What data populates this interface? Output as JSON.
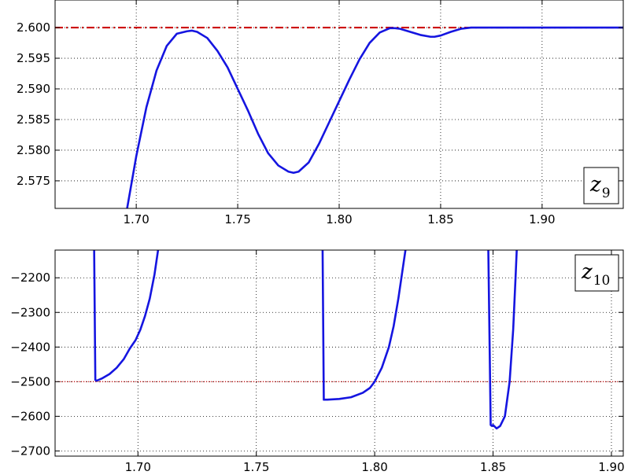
{
  "chart_data": [
    {
      "type": "line",
      "legend_label": "z",
      "legend_subscript": "9",
      "legend_placement": "bottom-right",
      "xlim": [
        1.66,
        1.94
      ],
      "ylim": [
        2.5705,
        2.6045
      ],
      "xticks": [
        1.7,
        1.75,
        1.8,
        1.85,
        1.9
      ],
      "xtick_labels": [
        "1.70",
        "1.75",
        "1.80",
        "1.85",
        "1.90"
      ],
      "yticks": [
        2.575,
        2.58,
        2.585,
        2.59,
        2.595,
        2.6
      ],
      "ytick_labels": [
        "2.575",
        "2.580",
        "2.585",
        "2.590",
        "2.595",
        "2.600"
      ],
      "grid": true,
      "reference_line": {
        "y": 2.6,
        "color": "#cc0000",
        "style": "dash-dot"
      },
      "series": [
        {
          "color": "#1515e0",
          "x": [
            1.6955,
            1.7,
            1.705,
            1.71,
            1.715,
            1.72,
            1.725,
            1.7275,
            1.73,
            1.735,
            1.74,
            1.745,
            1.75,
            1.755,
            1.76,
            1.765,
            1.77,
            1.775,
            1.7775,
            1.78,
            1.785,
            1.79,
            1.795,
            1.8,
            1.805,
            1.81,
            1.815,
            1.82,
            1.825,
            1.8275,
            1.83,
            1.835,
            1.84,
            1.845,
            1.847,
            1.85,
            1.855,
            1.86,
            1.865,
            1.87,
            1.88,
            1.9,
            1.92,
            1.94
          ],
          "y": [
            2.5705,
            2.579,
            2.587,
            2.593,
            2.597,
            2.599,
            2.5994,
            2.5995,
            2.5993,
            2.5983,
            2.5962,
            2.5935,
            2.59,
            2.5865,
            2.5827,
            2.5795,
            2.5775,
            2.5765,
            2.5763,
            2.5765,
            2.578,
            2.581,
            2.5845,
            2.588,
            2.5915,
            2.5948,
            2.5975,
            2.5992,
            2.5999,
            2.5999,
            2.5998,
            2.5993,
            2.5988,
            2.5985,
            2.5985,
            2.5987,
            2.5993,
            2.5998,
            2.6,
            2.6,
            2.6,
            2.6,
            2.6,
            2.6
          ]
        }
      ]
    },
    {
      "type": "line",
      "legend_label": "z",
      "legend_subscript": "10",
      "legend_placement": "top-right",
      "xlim": [
        1.665,
        1.905
      ],
      "ylim": [
        -2715,
        -2120
      ],
      "xticks": [
        1.7,
        1.75,
        1.8,
        1.85,
        1.9
      ],
      "xtick_labels": [
        "1.70",
        "1.75",
        "1.80",
        "1.85",
        "1.90"
      ],
      "yticks": [
        -2700,
        -2600,
        -2500,
        -2400,
        -2300,
        -2200
      ],
      "ytick_labels": [
        "−2700",
        "−2600",
        "−2500",
        "−2400",
        "−2300",
        "−2200"
      ],
      "grid": true,
      "reference_line": {
        "y": -2500,
        "color": "#cc0000",
        "style": "dotted"
      },
      "series": [
        {
          "color": "#1515e0",
          "segments": [
            {
              "x": [
                1.6815,
                1.682,
                1.6825,
                1.683,
                1.685,
                1.688,
                1.691,
                1.694,
                1.6965,
                1.697,
                1.699,
                1.701,
                1.703,
                1.705,
                1.707,
                1.7085
              ],
              "y": [
                -2120,
                -2495,
                -2497,
                -2496,
                -2490,
                -2478,
                -2460,
                -2435,
                -2405,
                -2400,
                -2380,
                -2350,
                -2310,
                -2260,
                -2190,
                -2120
              ]
            },
            {
              "x": [
                1.778,
                1.7785,
                1.78,
                1.785,
                1.79,
                1.795,
                1.798,
                1.8,
                1.803,
                1.806,
                1.808,
                1.81,
                1.8115,
                1.813
              ],
              "y": [
                -2120,
                -2552,
                -2552,
                -2550,
                -2545,
                -2532,
                -2518,
                -2500,
                -2460,
                -2400,
                -2340,
                -2260,
                -2190,
                -2120
              ]
            },
            {
              "x": [
                1.848,
                1.849,
                1.8495,
                1.85,
                1.8515,
                1.853,
                1.855,
                1.857,
                1.8585,
                1.8595,
                1.86
              ],
              "y": [
                -2120,
                -2625,
                -2628,
                -2625,
                -2635,
                -2628,
                -2600,
                -2500,
                -2350,
                -2200,
                -2120
              ]
            }
          ]
        }
      ]
    }
  ]
}
